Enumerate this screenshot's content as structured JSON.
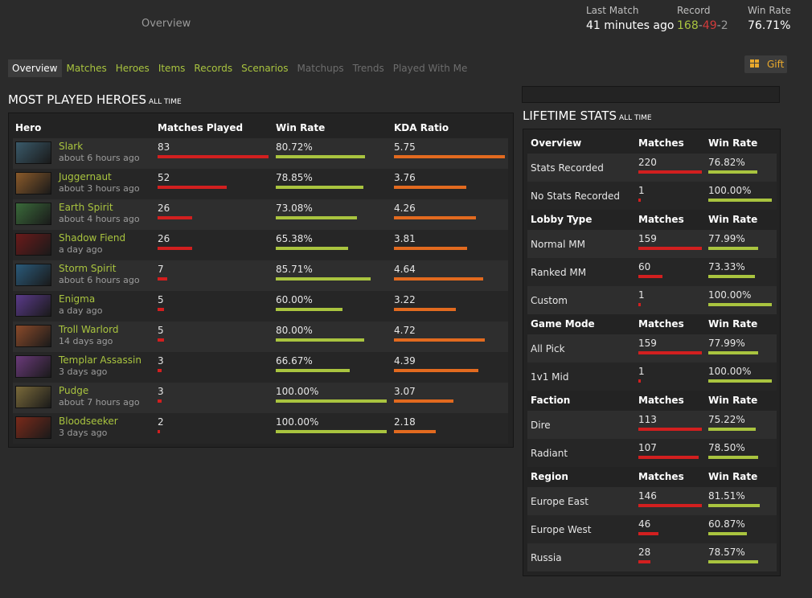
{
  "header": {
    "page_name": "Overview",
    "last_match_label": "Last Match",
    "last_match_value": "41 minutes ago",
    "record_label": "Record",
    "record_wins": "168",
    "record_losses": "49",
    "record_abandons": "2",
    "record_sep": "-",
    "winrate_label": "Win Rate",
    "winrate_value": "76.71%"
  },
  "tabs": [
    {
      "label": "Overview",
      "state": "active"
    },
    {
      "label": "Matches",
      "state": "enabled"
    },
    {
      "label": "Heroes",
      "state": "enabled"
    },
    {
      "label": "Items",
      "state": "enabled"
    },
    {
      "label": "Records",
      "state": "enabled"
    },
    {
      "label": "Scenarios",
      "state": "enabled"
    },
    {
      "label": "Matchups",
      "state": "disabled"
    },
    {
      "label": "Trends",
      "state": "disabled"
    },
    {
      "label": "Played With Me",
      "state": "disabled"
    }
  ],
  "gift": {
    "label": "Gift",
    "icon": "gift-icon",
    "color": "#e8a82c"
  },
  "most_played": {
    "title": "MOST PLAYED HEROES",
    "subtitle": "ALL TIME",
    "columns": [
      "Hero",
      "Matches Played",
      "Win Rate",
      "KDA Ratio"
    ],
    "rows": [
      {
        "hero": "Slark",
        "time": "about 6 hours ago",
        "matches": "83",
        "winrate": "80.72%",
        "kda": "5.75",
        "m_frac": 1.0,
        "w_frac": 0.8072,
        "k_frac": 1.0,
        "color": "#3a5a6a"
      },
      {
        "hero": "Juggernaut",
        "time": "about 3 hours ago",
        "matches": "52",
        "winrate": "78.85%",
        "kda": "3.76",
        "m_frac": 0.6265,
        "w_frac": 0.7885,
        "k_frac": 0.6539,
        "color": "#8a5a2a"
      },
      {
        "hero": "Earth Spirit",
        "time": "about 4 hours ago",
        "matches": "26",
        "winrate": "73.08%",
        "kda": "4.26",
        "m_frac": 0.3133,
        "w_frac": 0.7308,
        "k_frac": 0.7409,
        "color": "#3a6a3a"
      },
      {
        "hero": "Shadow Fiend",
        "time": "a day ago",
        "matches": "26",
        "winrate": "65.38%",
        "kda": "3.81",
        "m_frac": 0.3133,
        "w_frac": 0.6538,
        "k_frac": 0.6626,
        "color": "#6a1a1a"
      },
      {
        "hero": "Storm Spirit",
        "time": "about 6 hours ago",
        "matches": "7",
        "winrate": "85.71%",
        "kda": "4.64",
        "m_frac": 0.0843,
        "w_frac": 0.8571,
        "k_frac": 0.807,
        "color": "#2a5a7a"
      },
      {
        "hero": "Enigma",
        "time": "a day ago",
        "matches": "5",
        "winrate": "60.00%",
        "kda": "3.22",
        "m_frac": 0.0602,
        "w_frac": 0.6,
        "k_frac": 0.56,
        "color": "#5a3a8a"
      },
      {
        "hero": "Troll Warlord",
        "time": "14 days ago",
        "matches": "5",
        "winrate": "80.00%",
        "kda": "4.72",
        "m_frac": 0.0602,
        "w_frac": 0.8,
        "k_frac": 0.8209,
        "color": "#8a4a2a"
      },
      {
        "hero": "Templar Assassin",
        "time": "3 days ago",
        "matches": "3",
        "winrate": "66.67%",
        "kda": "4.39",
        "m_frac": 0.0361,
        "w_frac": 0.6667,
        "k_frac": 0.7635,
        "color": "#6a3a7a"
      },
      {
        "hero": "Pudge",
        "time": "about 7 hours ago",
        "matches": "3",
        "winrate": "100.00%",
        "kda": "3.07",
        "m_frac": 0.0361,
        "w_frac": 1.0,
        "k_frac": 0.5339,
        "color": "#7a6a3a"
      },
      {
        "hero": "Bloodseeker",
        "time": "3 days ago",
        "matches": "2",
        "winrate": "100.00%",
        "kda": "2.18",
        "m_frac": 0.0241,
        "w_frac": 1.0,
        "k_frac": 0.3791,
        "color": "#7a2a1a"
      }
    ]
  },
  "lifetime": {
    "title": "LIFETIME STATS",
    "subtitle": "ALL TIME",
    "groups": [
      {
        "name": "Overview",
        "col2": "Matches",
        "col3": "Win Rate",
        "rows": [
          {
            "label": "Stats Recorded",
            "matches": "220",
            "winrate": "76.82%",
            "m_frac": 1.0,
            "w_frac": 0.7682
          },
          {
            "label": "No Stats Recorded",
            "matches": "1",
            "winrate": "100.00%",
            "m_frac": 0.0045,
            "w_frac": 1.0
          }
        ]
      },
      {
        "name": "Lobby Type",
        "col2": "Matches",
        "col3": "Win Rate",
        "rows": [
          {
            "label": "Normal MM",
            "matches": "159",
            "winrate": "77.99%",
            "m_frac": 1.0,
            "w_frac": 0.7799
          },
          {
            "label": "Ranked MM",
            "matches": "60",
            "winrate": "73.33%",
            "m_frac": 0.3774,
            "w_frac": 0.7333
          },
          {
            "label": "Custom",
            "matches": "1",
            "winrate": "100.00%",
            "m_frac": 0.0063,
            "w_frac": 1.0
          }
        ]
      },
      {
        "name": "Game Mode",
        "col2": "Matches",
        "col3": "Win Rate",
        "rows": [
          {
            "label": "All Pick",
            "matches": "159",
            "winrate": "77.99%",
            "m_frac": 1.0,
            "w_frac": 0.7799
          },
          {
            "label": "1v1 Mid",
            "matches": "1",
            "winrate": "100.00%",
            "m_frac": 0.0063,
            "w_frac": 1.0
          }
        ]
      },
      {
        "name": "Faction",
        "col2": "Matches",
        "col3": "Win Rate",
        "rows": [
          {
            "label": "Dire",
            "matches": "113",
            "winrate": "75.22%",
            "m_frac": 1.0,
            "w_frac": 0.7522
          },
          {
            "label": "Radiant",
            "matches": "107",
            "winrate": "78.50%",
            "m_frac": 0.9469,
            "w_frac": 0.785
          }
        ]
      },
      {
        "name": "Region",
        "col2": "Matches",
        "col3": "Win Rate",
        "rows": [
          {
            "label": "Europe East",
            "matches": "146",
            "winrate": "81.51%",
            "m_frac": 1.0,
            "w_frac": 0.8151
          },
          {
            "label": "Europe West",
            "matches": "46",
            "winrate": "60.87%",
            "m_frac": 0.3151,
            "w_frac": 0.6087
          },
          {
            "label": "Russia",
            "matches": "28",
            "winrate": "78.57%",
            "m_frac": 0.1918,
            "w_frac": 0.7857
          }
        ]
      }
    ]
  },
  "colors": {
    "accent": "#a9c43f",
    "loss": "#d21f1f",
    "kda": "#e26a1f",
    "gift": "#e8a82c"
  }
}
